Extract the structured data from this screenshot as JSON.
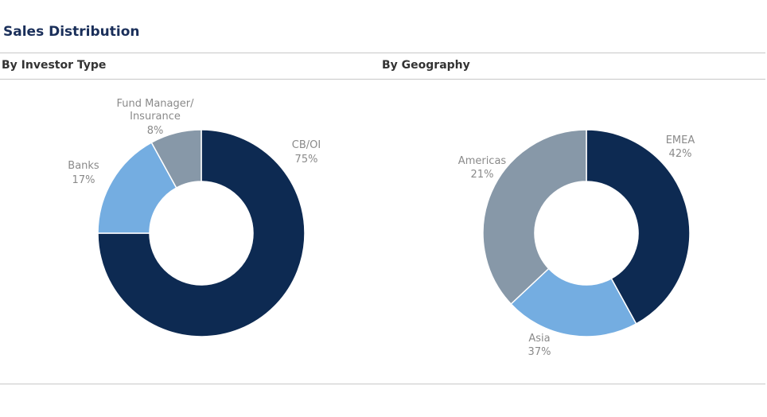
{
  "title": "Sales Distribution",
  "chart_data": [
    {
      "type": "donut",
      "title": "By Investor Type",
      "categories": [
        "CB/OI",
        "Banks",
        "Fund Manager/ Insurance"
      ],
      "values": [
        75,
        17,
        8
      ],
      "value_labels": [
        "75%",
        "17%",
        "8%"
      ],
      "colors": [
        "#0d2a52",
        "#74ade1",
        "#8798a8"
      ]
    },
    {
      "type": "donut",
      "title": "By Geography",
      "categories": [
        "EMEA",
        "Americas",
        "Asia"
      ],
      "values": [
        42,
        21,
        37
      ],
      "value_labels": [
        "42%",
        "21%",
        "37%"
      ],
      "colors": [
        "#0d2a52",
        "#74ade1",
        "#8798a8"
      ]
    }
  ]
}
